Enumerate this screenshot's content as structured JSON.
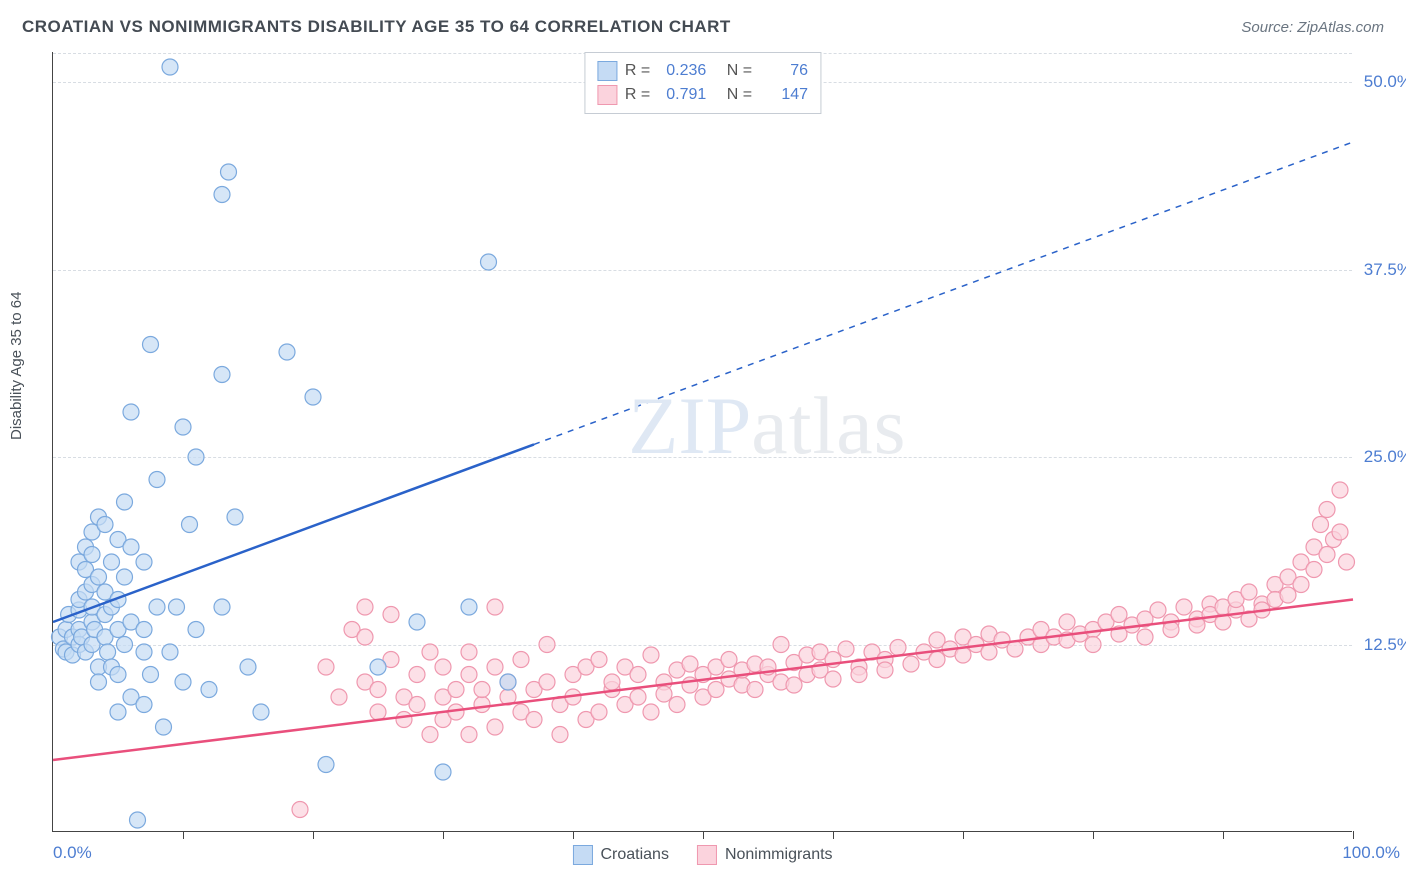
{
  "header": {
    "title": "CROATIAN VS NONIMMIGRANTS DISABILITY AGE 35 TO 64 CORRELATION CHART",
    "source_prefix": "Source: ",
    "source_name": "ZipAtlas.com"
  },
  "watermark": {
    "part1": "ZIP",
    "part2": "atlas"
  },
  "axes": {
    "ylabel": "Disability Age 35 to 64",
    "xlim": [
      0,
      100
    ],
    "ylim": [
      0,
      52
    ],
    "xtick_left": "0.0%",
    "xtick_right": "100.0%",
    "xtick_positions": [
      10,
      20,
      30,
      40,
      50,
      60,
      70,
      80,
      90,
      100
    ],
    "yticks": [
      {
        "v": 12.5,
        "label": "12.5%"
      },
      {
        "v": 25.0,
        "label": "25.0%"
      },
      {
        "v": 37.5,
        "label": "37.5%"
      },
      {
        "v": 50.0,
        "label": "50.0%"
      }
    ],
    "grid_color": "#d8dde3",
    "tick_color": "#4d7dd1",
    "label_fontsize": 15
  },
  "series": {
    "croatians": {
      "label": "Croatians",
      "color_fill": "#c5dbf4",
      "color_stroke": "#7ba9de",
      "line_color": "#2a62c9",
      "marker_radius": 8,
      "marker_opacity": 0.7,
      "R": "0.236",
      "N": "76",
      "regression": {
        "x1": 0,
        "y1": 14,
        "x2": 100,
        "y2": 46,
        "solid_until_x": 37
      },
      "points": [
        [
          0.5,
          13
        ],
        [
          0.8,
          12.2
        ],
        [
          1,
          13.5
        ],
        [
          1,
          12
        ],
        [
          1.2,
          14.5
        ],
        [
          1.5,
          13
        ],
        [
          1.5,
          11.8
        ],
        [
          2,
          14.8
        ],
        [
          2,
          13.5
        ],
        [
          2,
          12.5
        ],
        [
          2,
          15.5
        ],
        [
          2,
          18
        ],
        [
          2.2,
          13
        ],
        [
          2.5,
          12
        ],
        [
          2.5,
          16
        ],
        [
          2.5,
          17.5
        ],
        [
          2.5,
          19
        ],
        [
          3,
          12.5
        ],
        [
          3,
          14
        ],
        [
          3,
          15
        ],
        [
          3,
          16.5
        ],
        [
          3,
          18.5
        ],
        [
          3,
          20
        ],
        [
          3.2,
          13.5
        ],
        [
          3.5,
          11
        ],
        [
          3.5,
          10
        ],
        [
          3.5,
          17
        ],
        [
          3.5,
          21
        ],
        [
          4,
          13
        ],
        [
          4,
          14.5
        ],
        [
          4,
          16
        ],
        [
          4,
          20.5
        ],
        [
          4.2,
          12
        ],
        [
          4.5,
          11
        ],
        [
          4.5,
          15
        ],
        [
          4.5,
          18
        ],
        [
          5,
          10.5
        ],
        [
          5,
          13.5
        ],
        [
          5,
          15.5
        ],
        [
          5,
          19.5
        ],
        [
          5,
          8
        ],
        [
          5.5,
          12.5
        ],
        [
          5.5,
          17
        ],
        [
          5.5,
          22
        ],
        [
          6,
          9
        ],
        [
          6,
          14
        ],
        [
          6,
          19
        ],
        [
          6,
          28
        ],
        [
          6.5,
          0.8
        ],
        [
          7,
          8.5
        ],
        [
          7,
          12
        ],
        [
          7,
          13.5
        ],
        [
          7,
          18
        ],
        [
          7.5,
          10.5
        ],
        [
          7.5,
          32.5
        ],
        [
          8,
          15
        ],
        [
          8,
          23.5
        ],
        [
          8.5,
          7
        ],
        [
          9,
          12
        ],
        [
          9,
          51
        ],
        [
          9.5,
          15
        ],
        [
          10,
          10
        ],
        [
          10,
          27
        ],
        [
          10.5,
          20.5
        ],
        [
          11,
          13.5
        ],
        [
          11,
          25
        ],
        [
          12,
          9.5
        ],
        [
          13,
          15
        ],
        [
          13,
          30.5
        ],
        [
          13,
          42.5
        ],
        [
          13.5,
          44
        ],
        [
          14,
          21
        ],
        [
          15,
          11
        ],
        [
          16,
          8
        ],
        [
          18,
          32
        ],
        [
          20,
          29
        ],
        [
          21,
          4.5
        ],
        [
          25,
          11
        ],
        [
          28,
          14
        ],
        [
          30,
          4
        ],
        [
          32,
          15
        ],
        [
          33.5,
          38
        ],
        [
          35,
          10
        ]
      ]
    },
    "nonimmigrants": {
      "label": "Nonimmigrants",
      "color_fill": "#fbd3dd",
      "color_stroke": "#ef98af",
      "line_color": "#e94f7c",
      "marker_radius": 8,
      "marker_opacity": 0.7,
      "R": "0.791",
      "N": "147",
      "regression": {
        "x1": 0,
        "y1": 4.8,
        "x2": 100,
        "y2": 15.5,
        "solid_until_x": 100
      },
      "points": [
        [
          19,
          1.5
        ],
        [
          21,
          11
        ],
        [
          22,
          9
        ],
        [
          23,
          13.5
        ],
        [
          24,
          10
        ],
        [
          24,
          13
        ],
        [
          24,
          15
        ],
        [
          25,
          8
        ],
        [
          25,
          9.5
        ],
        [
          26,
          11.5
        ],
        [
          26,
          14.5
        ],
        [
          27,
          7.5
        ],
        [
          27,
          9
        ],
        [
          28,
          10.5
        ],
        [
          28,
          8.5
        ],
        [
          29,
          12
        ],
        [
          29,
          6.5
        ],
        [
          30,
          9
        ],
        [
          30,
          11
        ],
        [
          30,
          7.5
        ],
        [
          31,
          9.5
        ],
        [
          31,
          8
        ],
        [
          32,
          10.5
        ],
        [
          32,
          12
        ],
        [
          32,
          6.5
        ],
        [
          33,
          8.5
        ],
        [
          33,
          9.5
        ],
        [
          34,
          15
        ],
        [
          34,
          11
        ],
        [
          34,
          7
        ],
        [
          35,
          9
        ],
        [
          35,
          10
        ],
        [
          36,
          8
        ],
        [
          36,
          11.5
        ],
        [
          37,
          9.5
        ],
        [
          37,
          7.5
        ],
        [
          38,
          10
        ],
        [
          38,
          12.5
        ],
        [
          39,
          8.5
        ],
        [
          39,
          6.5
        ],
        [
          40,
          10.5
        ],
        [
          40,
          9
        ],
        [
          41,
          11
        ],
        [
          41,
          7.5
        ],
        [
          42,
          8
        ],
        [
          42,
          11.5
        ],
        [
          43,
          9.5
        ],
        [
          43,
          10
        ],
        [
          44,
          8.5
        ],
        [
          44,
          11
        ],
        [
          45,
          9
        ],
        [
          45,
          10.5
        ],
        [
          46,
          8
        ],
        [
          46,
          11.8
        ],
        [
          47,
          10
        ],
        [
          47,
          9.2
        ],
        [
          48,
          10.8
        ],
        [
          48,
          8.5
        ],
        [
          49,
          11.2
        ],
        [
          49,
          9.8
        ],
        [
          50,
          10.5
        ],
        [
          50,
          9
        ],
        [
          51,
          11
        ],
        [
          51,
          9.5
        ],
        [
          52,
          10.2
        ],
        [
          52,
          11.5
        ],
        [
          53,
          9.8
        ],
        [
          53,
          10.8
        ],
        [
          54,
          11.2
        ],
        [
          54,
          9.5
        ],
        [
          55,
          10.5
        ],
        [
          55,
          11
        ],
        [
          56,
          12.5
        ],
        [
          56,
          10
        ],
        [
          57,
          11.3
        ],
        [
          57,
          9.8
        ],
        [
          58,
          11.8
        ],
        [
          58,
          10.5
        ],
        [
          59,
          12
        ],
        [
          59,
          10.8
        ],
        [
          60,
          11.5
        ],
        [
          60,
          10.2
        ],
        [
          61,
          12.2
        ],
        [
          62,
          11
        ],
        [
          62,
          10.5
        ],
        [
          63,
          12
        ],
        [
          64,
          11.5
        ],
        [
          64,
          10.8
        ],
        [
          65,
          12.3
        ],
        [
          66,
          11.2
        ],
        [
          67,
          12
        ],
        [
          68,
          11.5
        ],
        [
          68,
          12.8
        ],
        [
          69,
          12.2
        ],
        [
          70,
          11.8
        ],
        [
          70,
          13
        ],
        [
          71,
          12.5
        ],
        [
          72,
          12
        ],
        [
          72,
          13.2
        ],
        [
          73,
          12.8
        ],
        [
          74,
          12.2
        ],
        [
          75,
          13
        ],
        [
          76,
          12.5
        ],
        [
          76,
          13.5
        ],
        [
          77,
          13
        ],
        [
          78,
          12.8
        ],
        [
          78,
          14
        ],
        [
          79,
          13.2
        ],
        [
          80,
          13.5
        ],
        [
          80,
          12.5
        ],
        [
          81,
          14
        ],
        [
          82,
          13.2
        ],
        [
          82,
          14.5
        ],
        [
          83,
          13.8
        ],
        [
          84,
          14.2
        ],
        [
          84,
          13
        ],
        [
          85,
          14.8
        ],
        [
          86,
          14
        ],
        [
          86,
          13.5
        ],
        [
          87,
          15
        ],
        [
          88,
          14.2
        ],
        [
          88,
          13.8
        ],
        [
          89,
          15.2
        ],
        [
          89,
          14.5
        ],
        [
          90,
          14
        ],
        [
          90,
          15
        ],
        [
          91,
          14.8
        ],
        [
          91,
          15.5
        ],
        [
          92,
          14.2
        ],
        [
          92,
          16
        ],
        [
          93,
          15.2
        ],
        [
          93,
          14.8
        ],
        [
          94,
          16.5
        ],
        [
          94,
          15.5
        ],
        [
          95,
          17
        ],
        [
          95,
          15.8
        ],
        [
          96,
          18
        ],
        [
          96,
          16.5
        ],
        [
          97,
          19
        ],
        [
          97,
          17.5
        ],
        [
          97.5,
          20.5
        ],
        [
          98,
          18.5
        ],
        [
          98,
          21.5
        ],
        [
          98.5,
          19.5
        ],
        [
          99,
          22.8
        ],
        [
          99,
          20
        ],
        [
          99.5,
          18
        ]
      ]
    }
  },
  "legend_labels": {
    "R": "R =",
    "N": "N ="
  }
}
